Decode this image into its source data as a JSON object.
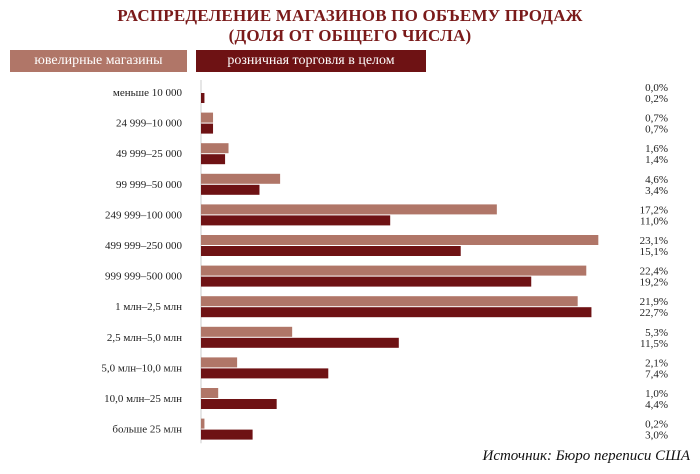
{
  "title_line1": "РАСПРЕДЕЛЕНИЕ МАГАЗИНОВ ПО ОБЪЕМУ ПРОДАЖ",
  "title_line2": "(ДОЛЯ ОТ ОБЩЕГО ЧИСЛА)",
  "source": "Источник: Бюро переписи США",
  "chart_data": {
    "type": "bar",
    "orientation": "horizontal",
    "categories": [
      "меньше 10 000",
      "24 999–10 000",
      "49 999–25 000",
      "99 999–50 000",
      "249 999–100 000",
      "499 999–250 000",
      "999 999–500 000",
      "1 млн–2,5 млн",
      "2,5 млн–5,0 млн",
      "5,0 млн–10,0 млн",
      "10,0 млн–25 млн",
      "больше 25 млн"
    ],
    "series": [
      {
        "name": "ювелирные магазины",
        "color": "#b07668",
        "values": [
          0.0,
          0.7,
          1.6,
          4.6,
          17.2,
          23.1,
          22.4,
          21.9,
          5.3,
          2.1,
          1.0,
          0.2
        ],
        "labels": [
          "0,0%",
          "0,7%",
          "1,6%",
          "4,6%",
          "17,2%",
          "23,1%",
          "22,4%",
          "21,9%",
          "5,3%",
          "2,1%",
          "1,0%",
          "0,2%"
        ]
      },
      {
        "name": "розничная торговля в целом",
        "color": "#6e1214",
        "values": [
          0.2,
          0.7,
          1.4,
          3.4,
          11.0,
          15.1,
          19.2,
          22.7,
          11.5,
          7.4,
          4.4,
          3.0
        ],
        "labels": [
          "0,2%",
          "0,7%",
          "1,4%",
          "3,4%",
          "11,0%",
          "15,1%",
          "19,2%",
          "22,7%",
          "11,5%",
          "7,4%",
          "4,4%",
          "3,0%"
        ]
      }
    ],
    "xlim": [
      0,
      25
    ],
    "grid": false,
    "legend_position": "top-left"
  }
}
